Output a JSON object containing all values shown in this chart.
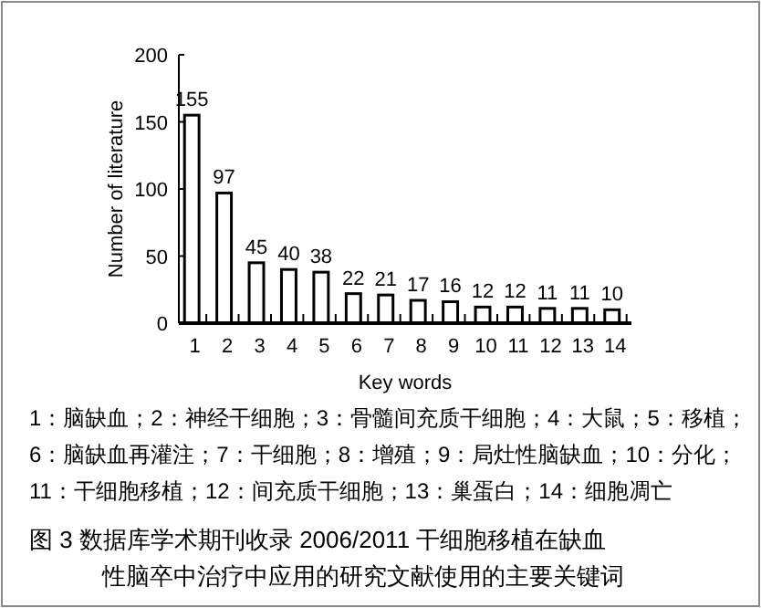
{
  "chart_data": {
    "type": "bar",
    "xlabel": "Key words",
    "ylabel": "Number of literature",
    "categories": [
      "1",
      "2",
      "3",
      "4",
      "5",
      "6",
      "7",
      "8",
      "9",
      "10",
      "11",
      "12",
      "13",
      "14"
    ],
    "values": [
      155,
      97,
      45,
      40,
      38,
      22,
      21,
      17,
      16,
      12,
      12,
      11,
      11,
      10
    ],
    "color": "#ffffff",
    "ylim": [
      0,
      200
    ],
    "yticks": [
      0,
      50,
      100,
      150,
      200
    ],
    "data_labels": true,
    "grid": false,
    "annotations": [
      "1：脑缺血；2：神经干细胞；3：骨髓间充质干细胞；4：大鼠；5：移植；",
      "6：脑缺血再灌注；7：干细胞；8：增殖；9：局灶性脑缺血；10：分化；",
      "11：干细胞移植；12：间充质干细胞；13：巢蛋白；14：细胞凋亡",
      "图 3  数据库学术期刊收录 2006/2011 干细胞移植在缺血",
      "性脑卒中治疗中应用的研究文献使用的主要关键词"
    ]
  }
}
